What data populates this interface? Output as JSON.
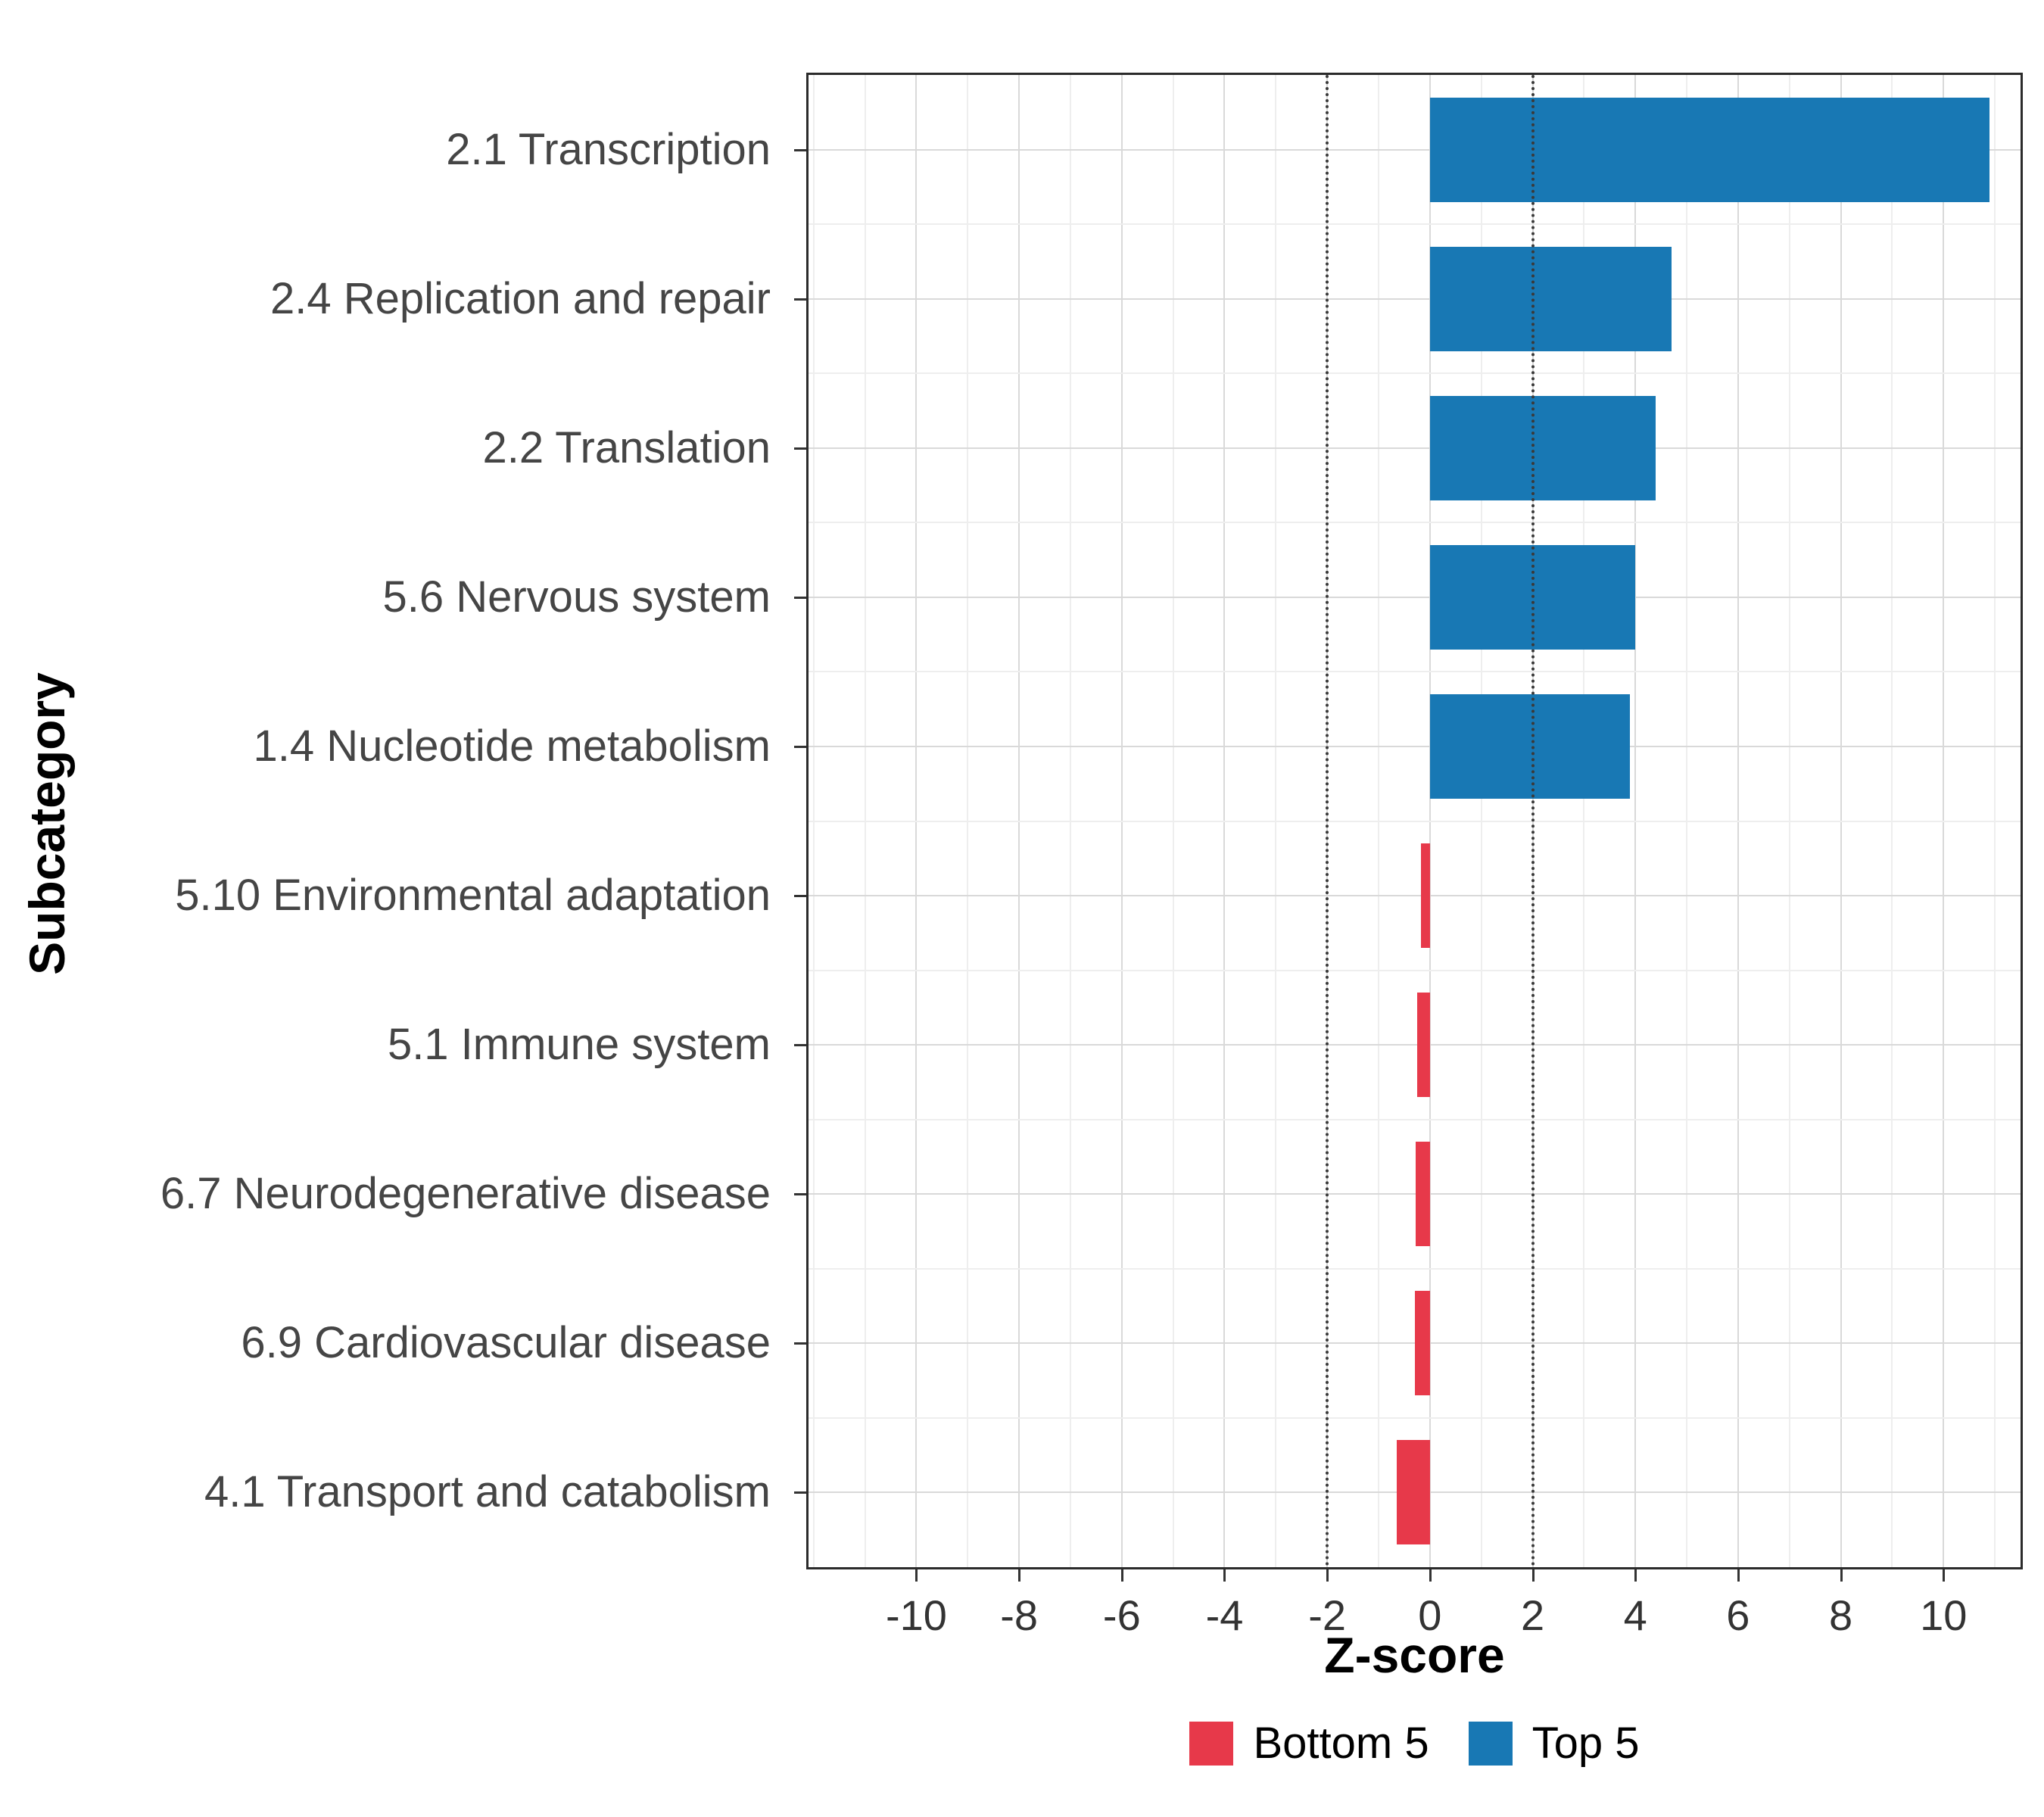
{
  "chart_data": {
    "type": "bar",
    "orientation": "horizontal",
    "title": "",
    "xlabel": "Z-score",
    "ylabel": "Subcategory",
    "categories": [
      "2.1 Transcription",
      "2.4 Replication and repair",
      "2.2 Translation",
      "5.6 Nervous system",
      "1.4 Nucleotide metabolism",
      "5.10 Environmental adaptation",
      "5.1 Immune system",
      "6.7 Neurodegenerative disease",
      "6.9 Cardiovascular disease",
      "4.1 Transport and catabolism"
    ],
    "values": [
      10.9,
      4.7,
      4.4,
      4.0,
      3.9,
      -0.18,
      -0.25,
      -0.28,
      -0.3,
      -0.65
    ],
    "groups": [
      "Top 5",
      "Top 5",
      "Top 5",
      "Top 5",
      "Top 5",
      "Bottom 5",
      "Bottom 5",
      "Bottom 5",
      "Bottom 5",
      "Bottom 5"
    ],
    "colors": {
      "Top 5": "#1878B4",
      "Bottom 5": "#E7394A"
    },
    "xlim": [
      -12.1,
      11.5
    ],
    "x_ticks": [
      -10,
      -8,
      -6,
      -4,
      -2,
      0,
      2,
      4,
      6,
      8,
      10
    ],
    "x_tick_labels": [
      "-10",
      "-8",
      "-6",
      "-4",
      "-2",
      "0",
      "2",
      "4",
      "6",
      "8",
      "10"
    ],
    "reference_lines": [
      -2,
      2
    ],
    "grid": true,
    "legend_position": "bottom"
  },
  "legend": {
    "items": [
      {
        "label": "Bottom 5",
        "color": "#E7394A"
      },
      {
        "label": "Top 5",
        "color": "#1878B4"
      }
    ]
  }
}
